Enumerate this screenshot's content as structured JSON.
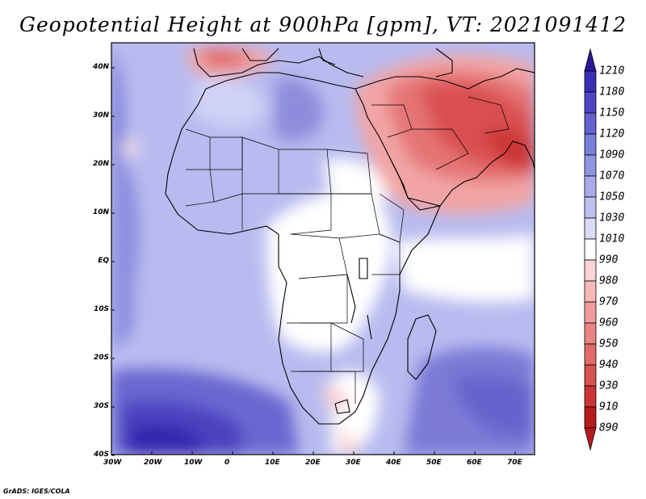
{
  "title": "Geopotential Height at 900hPa [gpm], VT: 2021091412",
  "footer": "GrADS: IGES/COLA",
  "map": {
    "lat_labels": [
      "40N",
      "30N",
      "20N",
      "10N",
      "EQ",
      "10S",
      "20S",
      "30S",
      "40S"
    ],
    "lon_labels": [
      "30W",
      "20W",
      "10W",
      "0",
      "10E",
      "20E",
      "30E",
      "40E",
      "50E",
      "60E",
      "70E"
    ]
  },
  "colorbar": {
    "levels": [
      "1210",
      "1180",
      "1150",
      "1120",
      "1090",
      "1070",
      "1050",
      "1030",
      "1010",
      "990",
      "980",
      "970",
      "960",
      "950",
      "940",
      "930",
      "910",
      "890"
    ],
    "colors": [
      "#2a1a9a",
      "#3a2eb4",
      "#4d45c6",
      "#6462d0",
      "#7a7fda",
      "#9095e2",
      "#a7abe9",
      "#bec0f0",
      "#dadcf6",
      "#ffffff",
      "#fbd4d4",
      "#f6b9b9",
      "#f09c9c",
      "#e98282",
      "#e26a6a",
      "#d95050",
      "#cc3535",
      "#b71c1c"
    ]
  }
}
